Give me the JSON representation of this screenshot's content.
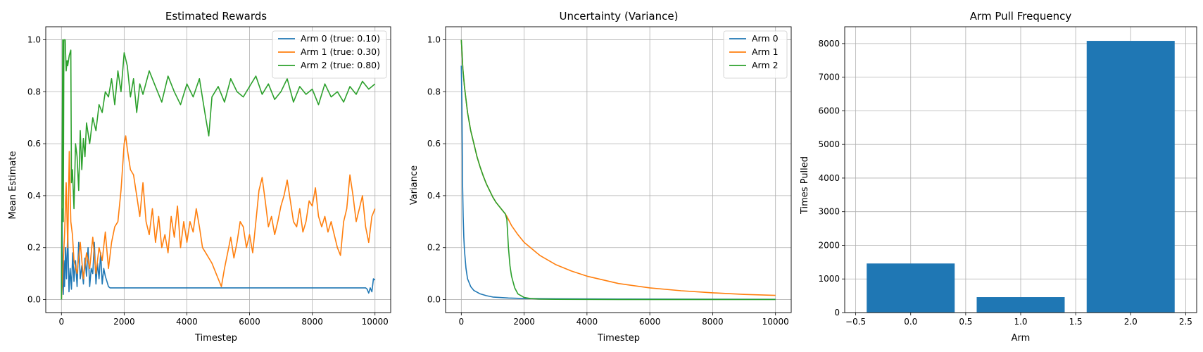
{
  "chart_data": [
    {
      "type": "line",
      "title": "Estimated Rewards",
      "xlabel": "Timestep",
      "ylabel": "Mean Estimate",
      "xlim": [
        -500,
        10500
      ],
      "ylim": [
        -0.05,
        1.05
      ],
      "xticks": [
        0,
        2000,
        4000,
        6000,
        8000,
        10000
      ],
      "yticks": [
        0.0,
        0.2,
        0.4,
        0.6,
        0.8,
        1.0
      ],
      "grid": true,
      "legend": "top-right",
      "series": [
        {
          "name": "Arm 0 (true: 0.10)",
          "color": "#1f77b4",
          "x": [
            0,
            10,
            20,
            30,
            40,
            60,
            80,
            100,
            130,
            160,
            200,
            240,
            280,
            320,
            360,
            400,
            450,
            500,
            550,
            600,
            650,
            700,
            750,
            800,
            850,
            900,
            950,
            1000,
            1050,
            1100,
            1150,
            1200,
            1250,
            1300,
            1350,
            1400,
            1450,
            1500,
            1550,
            2000,
            3000,
            4000,
            5000,
            6000,
            7000,
            8000,
            9000,
            9700,
            9750,
            9800,
            9850,
            9900,
            9950,
            10000
          ],
          "y": [
            0.0,
            0.3,
            0.35,
            0.05,
            0.1,
            0.02,
            0.15,
            0.05,
            0.2,
            0.08,
            0.26,
            0.03,
            0.12,
            0.04,
            0.18,
            0.07,
            0.15,
            0.05,
            0.22,
            0.08,
            0.13,
            0.06,
            0.16,
            0.09,
            0.2,
            0.05,
            0.12,
            0.1,
            0.22,
            0.06,
            0.14,
            0.08,
            0.18,
            0.06,
            0.12,
            0.09,
            0.07,
            0.05,
            0.045,
            0.045,
            0.045,
            0.045,
            0.045,
            0.045,
            0.045,
            0.045,
            0.045,
            0.045,
            0.04,
            0.025,
            0.045,
            0.03,
            0.08,
            0.075
          ]
        },
        {
          "name": "Arm 1 (true: 0.30)",
          "color": "#ff7f0e",
          "x": [
            0,
            100,
            150,
            200,
            250,
            300,
            350,
            400,
            500,
            600,
            700,
            800,
            900,
            1000,
            1100,
            1200,
            1300,
            1400,
            1500,
            1600,
            1700,
            1800,
            1900,
            2000,
            2050,
            2100,
            2200,
            2300,
            2400,
            2500,
            2600,
            2700,
            2800,
            2900,
            3000,
            3100,
            3200,
            3300,
            3400,
            3500,
            3600,
            3700,
            3800,
            3900,
            4000,
            4100,
            4200,
            4300,
            4400,
            4500,
            4600,
            4800,
            5000,
            5100,
            5200,
            5300,
            5400,
            5500,
            5600,
            5700,
            5800,
            5900,
            6000,
            6100,
            6200,
            6300,
            6400,
            6500,
            6600,
            6700,
            6800,
            6900,
            7000,
            7100,
            7200,
            7300,
            7400,
            7500,
            7600,
            7700,
            7800,
            7900,
            8000,
            8100,
            8200,
            8300,
            8400,
            8500,
            8600,
            8700,
            8800,
            8900,
            9000,
            9100,
            9200,
            9300,
            9400,
            9500,
            9600,
            9700,
            9800,
            9900,
            10000
          ],
          "y": [
            0.0,
            0.25,
            0.45,
            0.2,
            0.57,
            0.3,
            0.25,
            0.15,
            0.1,
            0.22,
            0.08,
            0.18,
            0.12,
            0.24,
            0.1,
            0.2,
            0.15,
            0.26,
            0.12,
            0.22,
            0.28,
            0.3,
            0.42,
            0.6,
            0.63,
            0.58,
            0.5,
            0.48,
            0.4,
            0.32,
            0.45,
            0.3,
            0.25,
            0.35,
            0.22,
            0.32,
            0.2,
            0.25,
            0.18,
            0.32,
            0.24,
            0.36,
            0.2,
            0.3,
            0.22,
            0.3,
            0.26,
            0.35,
            0.28,
            0.2,
            0.18,
            0.14,
            0.08,
            0.05,
            0.12,
            0.18,
            0.24,
            0.16,
            0.22,
            0.3,
            0.28,
            0.2,
            0.25,
            0.18,
            0.3,
            0.42,
            0.47,
            0.38,
            0.28,
            0.32,
            0.25,
            0.3,
            0.36,
            0.4,
            0.46,
            0.38,
            0.3,
            0.28,
            0.35,
            0.26,
            0.3,
            0.38,
            0.36,
            0.43,
            0.32,
            0.28,
            0.32,
            0.26,
            0.3,
            0.25,
            0.2,
            0.17,
            0.3,
            0.35,
            0.48,
            0.4,
            0.3,
            0.35,
            0.4,
            0.28,
            0.22,
            0.32,
            0.35
          ]
        },
        {
          "name": "Arm 2 (true: 0.80)",
          "color": "#2ca02c",
          "x": [
            0,
            20,
            40,
            60,
            80,
            100,
            120,
            150,
            180,
            200,
            250,
            300,
            320,
            350,
            400,
            450,
            500,
            550,
            600,
            650,
            700,
            750,
            800,
            900,
            1000,
            1100,
            1200,
            1300,
            1400,
            1500,
            1600,
            1700,
            1800,
            1900,
            2000,
            2100,
            2200,
            2300,
            2400,
            2500,
            2600,
            2800,
            3000,
            3200,
            3400,
            3600,
            3800,
            4000,
            4200,
            4400,
            4600,
            4700,
            4800,
            5000,
            5200,
            5400,
            5600,
            5800,
            6000,
            6200,
            6400,
            6600,
            6800,
            7000,
            7200,
            7400,
            7600,
            7800,
            8000,
            8200,
            8400,
            8600,
            8800,
            9000,
            9200,
            9400,
            9600,
            9800,
            10000
          ],
          "y": [
            0.0,
            0.45,
            1.0,
            0.3,
            1.0,
            1.0,
            1.0,
            0.88,
            0.92,
            0.9,
            0.94,
            0.96,
            0.45,
            0.5,
            0.35,
            0.6,
            0.55,
            0.42,
            0.65,
            0.5,
            0.62,
            0.55,
            0.68,
            0.6,
            0.7,
            0.65,
            0.75,
            0.72,
            0.8,
            0.78,
            0.85,
            0.75,
            0.88,
            0.8,
            0.95,
            0.9,
            0.78,
            0.85,
            0.72,
            0.83,
            0.79,
            0.88,
            0.82,
            0.76,
            0.86,
            0.8,
            0.75,
            0.83,
            0.78,
            0.85,
            0.7,
            0.63,
            0.78,
            0.82,
            0.76,
            0.85,
            0.8,
            0.78,
            0.82,
            0.86,
            0.79,
            0.83,
            0.77,
            0.8,
            0.85,
            0.76,
            0.82,
            0.79,
            0.81,
            0.75,
            0.83,
            0.78,
            0.8,
            0.76,
            0.82,
            0.79,
            0.84,
            0.81,
            0.83
          ]
        }
      ]
    },
    {
      "type": "line",
      "title": "Uncertainty (Variance)",
      "xlabel": "Timestep",
      "ylabel": "Variance",
      "xlim": [
        -500,
        10500
      ],
      "ylim": [
        -0.05,
        1.05
      ],
      "xticks": [
        0,
        2000,
        4000,
        6000,
        8000,
        10000
      ],
      "yticks": [
        0.0,
        0.2,
        0.4,
        0.6,
        0.8,
        1.0
      ],
      "grid": true,
      "legend": "top-right",
      "series": [
        {
          "name": "Arm 0",
          "color": "#1f77b4",
          "x": [
            0,
            20,
            40,
            60,
            80,
            100,
            150,
            200,
            300,
            400,
            600,
            800,
            1000,
            1500,
            2000,
            3000,
            5000,
            10000
          ],
          "y": [
            0.9,
            0.75,
            0.45,
            0.32,
            0.24,
            0.19,
            0.12,
            0.08,
            0.05,
            0.035,
            0.022,
            0.015,
            0.01,
            0.006,
            0.004,
            0.003,
            0.002,
            0.001
          ]
        },
        {
          "name": "Arm 1",
          "color": "#ff7f0e",
          "x": [
            0,
            20,
            50,
            100,
            200,
            300,
            400,
            500,
            600,
            700,
            800,
            900,
            1000,
            1100,
            1200,
            1300,
            1400,
            1450,
            1600,
            1800,
            2000,
            2500,
            3000,
            3500,
            4000,
            5000,
            6000,
            7000,
            8000,
            9000,
            10000
          ],
          "y": [
            1.0,
            0.96,
            0.89,
            0.82,
            0.72,
            0.65,
            0.6,
            0.55,
            0.51,
            0.475,
            0.445,
            0.42,
            0.395,
            0.375,
            0.36,
            0.345,
            0.33,
            0.32,
            0.285,
            0.25,
            0.22,
            0.17,
            0.135,
            0.11,
            0.09,
            0.062,
            0.045,
            0.034,
            0.026,
            0.02,
            0.016
          ]
        },
        {
          "name": "Arm 2",
          "color": "#2ca02c",
          "x": [
            0,
            20,
            50,
            100,
            200,
            300,
            400,
            500,
            600,
            700,
            800,
            900,
            1000,
            1100,
            1200,
            1300,
            1400,
            1450,
            1500,
            1550,
            1600,
            1700,
            1800,
            2000,
            2200,
            2500,
            3000,
            5000,
            10000
          ],
          "y": [
            1.0,
            0.96,
            0.89,
            0.82,
            0.72,
            0.65,
            0.6,
            0.55,
            0.51,
            0.475,
            0.445,
            0.42,
            0.395,
            0.375,
            0.36,
            0.345,
            0.33,
            0.31,
            0.2,
            0.13,
            0.09,
            0.045,
            0.022,
            0.008,
            0.004,
            0.002,
            0.001,
            0.0005,
            0.0003
          ]
        }
      ]
    },
    {
      "type": "bar",
      "title": "Arm Pull Frequency",
      "xlabel": "Arm",
      "ylabel": "Times Pulled",
      "categories": [
        0,
        1,
        2
      ],
      "values": [
        1460,
        460,
        8080
      ],
      "color": "#1f77b4",
      "xlim": [
        -0.6,
        2.6
      ],
      "ylim": [
        0,
        8500
      ],
      "xticks": [
        "−0.5",
        "0.0",
        "0.5",
        "1.0",
        "1.5",
        "2.0",
        "2.5"
      ],
      "yticks": [
        0,
        1000,
        2000,
        3000,
        4000,
        5000,
        6000,
        7000,
        8000
      ],
      "grid": true
    }
  ]
}
